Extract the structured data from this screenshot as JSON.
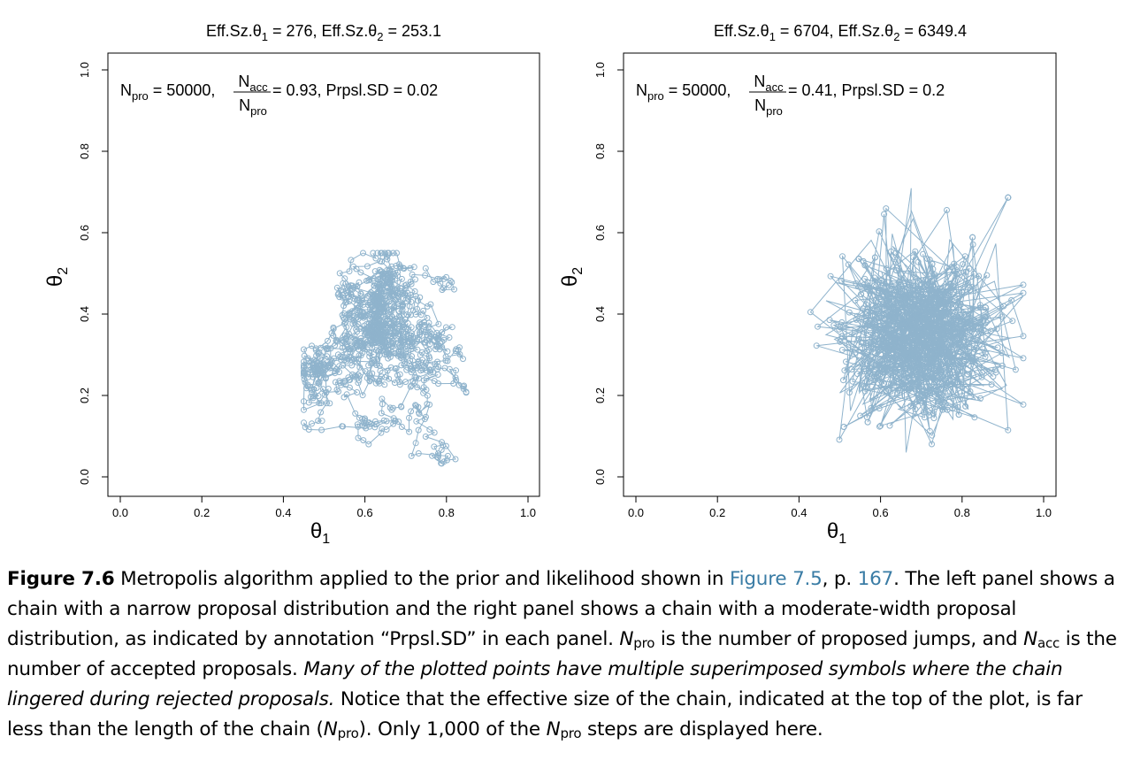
{
  "chart_data": [
    {
      "type": "scatter",
      "style": "connected points (chain path)",
      "title": "Eff.Sz.θ1 = 276, Eff.Sz.θ2 = 253.1",
      "title_parts": {
        "prefix1": "Eff.Sz.θ",
        "sub1": "1",
        "value1": " = 276, ",
        "prefix2": "Eff.Sz.θ",
        "sub2": "2",
        "value2": " = 253.1"
      },
      "annotation": {
        "npro_label": "N",
        "npro_sub": "pro",
        "npro_value": " = 50000, ",
        "frac_num": "N",
        "frac_num_sub": "acc",
        "frac_den": "N",
        "frac_den_sub": "pro",
        "ratio_text": " = 0.93, Prpsl.SD = 0.02"
      },
      "xlabel": {
        "symbol": "θ",
        "sub": "1"
      },
      "ylabel": {
        "symbol": "θ",
        "sub": "2"
      },
      "xlim": [
        0,
        1
      ],
      "ylim": [
        0,
        1
      ],
      "x_ticks": [
        "0.0",
        "0.2",
        "0.4",
        "0.6",
        "0.8",
        "1.0"
      ],
      "y_ticks": [
        "0.0",
        "0.2",
        "0.4",
        "0.6",
        "0.8",
        "1.0"
      ],
      "points_displayed": 1000,
      "proposal_sd": 0.02,
      "chain_start": [
        0.62,
        0.55
      ],
      "x_range_of_points": [
        0.45,
        0.9
      ],
      "y_range_of_points": [
        0.02,
        0.55
      ],
      "color": "#8fb3cc"
    },
    {
      "type": "scatter",
      "style": "connected points (chain path)",
      "title": "Eff.Sz.θ1 = 6704, Eff.Sz.θ2 = 6349.4",
      "title_parts": {
        "prefix1": "Eff.Sz.θ",
        "sub1": "1",
        "value1": " = 6704, ",
        "prefix2": "Eff.Sz.θ",
        "sub2": "2",
        "value2": " = 6349.4"
      },
      "annotation": {
        "npro_label": "N",
        "npro_sub": "pro",
        "npro_value": " = 50000, ",
        "frac_num": "N",
        "frac_num_sub": "acc",
        "frac_den": "N",
        "frac_den_sub": "pro",
        "ratio_text": " = 0.41, Prpsl.SD = 0.2"
      },
      "xlabel": {
        "symbol": "θ",
        "sub": "1"
      },
      "ylabel": {
        "symbol": "θ",
        "sub": "2"
      },
      "xlim": [
        0,
        1
      ],
      "ylim": [
        0,
        1
      ],
      "x_ticks": [
        "0.0",
        "0.2",
        "0.4",
        "0.6",
        "0.8",
        "1.0"
      ],
      "y_ticks": [
        "0.0",
        "0.2",
        "0.4",
        "0.6",
        "0.8",
        "1.0"
      ],
      "points_displayed": 1000,
      "proposal_sd": 0.2,
      "target_center": [
        0.7,
        0.35
      ],
      "target_sd": [
        0.09,
        0.1
      ],
      "x_range_of_points": [
        0.35,
        0.95
      ],
      "y_range_of_points": [
        0.06,
        0.8
      ],
      "color": "#8fb3cc"
    }
  ],
  "caption": {
    "fig_label": "Figure 7.6",
    "t1": " Metropolis algorithm applied to the prior and likelihood shown in ",
    "link1": "Figure 7.5",
    "t2": ", p. ",
    "link2": "167",
    "t3": ". The left panel shows a chain with a narrow proposal distribution and the right panel shows a chain with a moderate-width proposal distribution, as indicated by annotation “Prpsl.SD” in each panel. ",
    "n1": "N",
    "n1_sub": "pro",
    "t4": " is the number of proposed jumps, and ",
    "n2": "N",
    "n2_sub": "acc",
    "t5": " is the number of accepted proposals. ",
    "italic": "Many of the plotted points have multiple superimposed symbols where the chain lingered during rejected proposals.",
    "t6": " Notice that the effective size of the chain, indicated at the top of the plot, is far less than the length of the chain (",
    "n3": "N",
    "n3_sub": "pro",
    "t7": "). Only 1,000 of the ",
    "n4": "N",
    "n4_sub": "pro",
    "t8": " steps are displayed here."
  }
}
